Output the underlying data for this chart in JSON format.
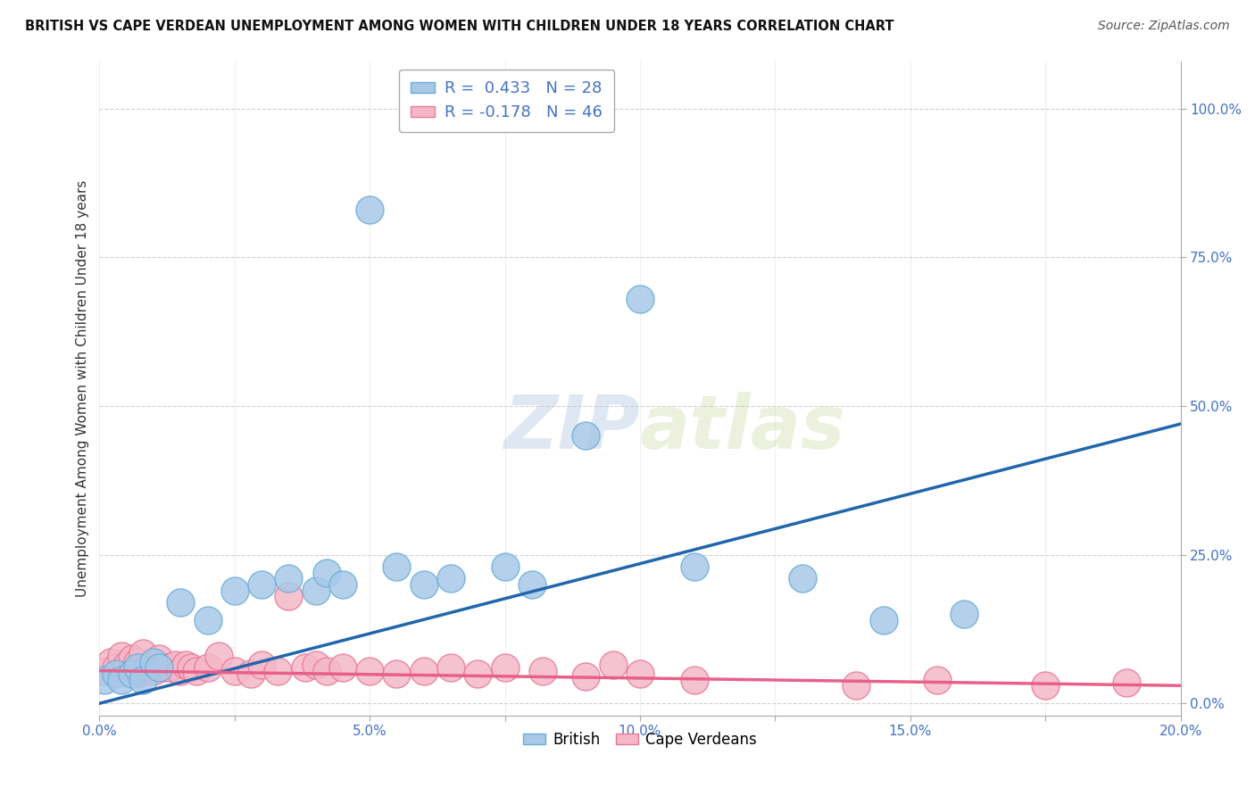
{
  "title": "BRITISH VS CAPE VERDEAN UNEMPLOYMENT AMONG WOMEN WITH CHILDREN UNDER 18 YEARS CORRELATION CHART",
  "source": "Source: ZipAtlas.com",
  "ylabel": "Unemployment Among Women with Children Under 18 years",
  "xlim": [
    0.0,
    0.2
  ],
  "ylim": [
    -0.02,
    1.08
  ],
  "xticks": [
    0.0,
    0.025,
    0.05,
    0.075,
    0.1,
    0.125,
    0.15,
    0.175,
    0.2
  ],
  "xticklabels": [
    "0.0%",
    "",
    "5.0%",
    "",
    "10.0%",
    "",
    "15.0%",
    "",
    "20.0%"
  ],
  "yticks": [
    0.0,
    0.25,
    0.5,
    0.75,
    1.0
  ],
  "yticklabels": [
    "0.0%",
    "25.0%",
    "50.0%",
    "75.0%",
    "100.0%"
  ],
  "legend1_label": "R =  0.433   N = 28",
  "legend2_label": "R = -0.178   N = 46",
  "british_color": "#a8c8e8",
  "british_edge_color": "#6baed6",
  "cape_color": "#f4b8c8",
  "cape_edge_color": "#e87898",
  "british_line_color": "#2166ac",
  "cape_line_color": "#e8608a",
  "watermark_text": "ZIPatlas",
  "blue_line_x0": 0.0,
  "blue_line_y0": 0.0,
  "blue_line_x1": 0.2,
  "blue_line_y1": 0.47,
  "pink_line_x0": 0.0,
  "pink_line_y0": 0.055,
  "pink_line_x1": 0.2,
  "pink_line_y1": 0.03,
  "british_x": [
    0.001,
    0.003,
    0.004,
    0.006,
    0.007,
    0.008,
    0.01,
    0.011,
    0.015,
    0.02,
    0.025,
    0.03,
    0.035,
    0.04,
    0.042,
    0.045,
    0.05,
    0.055,
    0.06,
    0.065,
    0.075,
    0.08,
    0.09,
    0.1,
    0.11,
    0.13,
    0.145,
    0.16
  ],
  "british_y": [
    0.04,
    0.05,
    0.04,
    0.05,
    0.06,
    0.04,
    0.07,
    0.06,
    0.17,
    0.14,
    0.19,
    0.2,
    0.21,
    0.19,
    0.22,
    0.2,
    0.83,
    0.23,
    0.2,
    0.21,
    0.23,
    0.2,
    0.45,
    0.68,
    0.23,
    0.21,
    0.14,
    0.15
  ],
  "cape_x": [
    0.001,
    0.002,
    0.003,
    0.004,
    0.005,
    0.006,
    0.006,
    0.007,
    0.007,
    0.008,
    0.009,
    0.01,
    0.011,
    0.012,
    0.013,
    0.014,
    0.015,
    0.016,
    0.017,
    0.018,
    0.02,
    0.022,
    0.025,
    0.028,
    0.03,
    0.033,
    0.035,
    0.038,
    0.04,
    0.042,
    0.045,
    0.05,
    0.055,
    0.06,
    0.065,
    0.07,
    0.075,
    0.082,
    0.09,
    0.095,
    0.1,
    0.11,
    0.14,
    0.155,
    0.175,
    0.19
  ],
  "cape_y": [
    0.055,
    0.07,
    0.06,
    0.08,
    0.065,
    0.055,
    0.075,
    0.05,
    0.07,
    0.085,
    0.06,
    0.055,
    0.075,
    0.06,
    0.06,
    0.065,
    0.055,
    0.065,
    0.06,
    0.055,
    0.06,
    0.08,
    0.055,
    0.05,
    0.065,
    0.055,
    0.18,
    0.06,
    0.065,
    0.055,
    0.06,
    0.055,
    0.05,
    0.055,
    0.06,
    0.05,
    0.06,
    0.055,
    0.045,
    0.065,
    0.05,
    0.04,
    0.03,
    0.04,
    0.03,
    0.035
  ],
  "background_color": "#ffffff",
  "grid_color": "#d0d0d0"
}
